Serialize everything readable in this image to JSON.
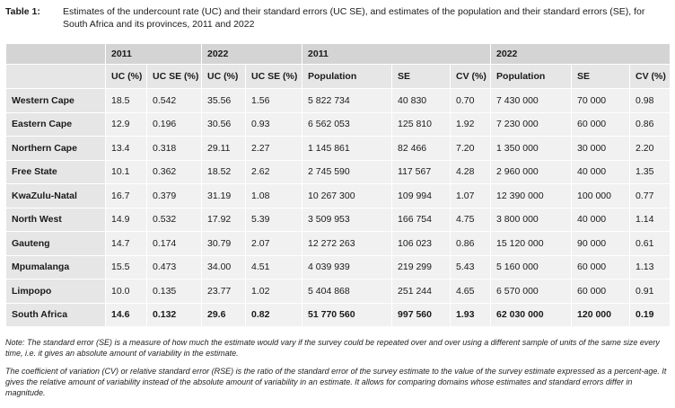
{
  "caption": {
    "label": "Table 1:",
    "text": "Estimates of the undercount rate (UC) and their standard errors (UC SE), and estimates of the population and their standard errors (SE), for South Africa and its provinces, 2011 and 2022"
  },
  "year_headers": [
    "2011",
    "2022",
    "2011",
    "2022"
  ],
  "column_headers": [
    "UC (%)",
    "UC SE (%)",
    "UC (%)",
    "UC SE (%)",
    "Population",
    "SE",
    "CV (%)",
    "Population",
    "SE",
    "CV (%)"
  ],
  "rows": [
    {
      "province": "Western Cape",
      "cells": [
        "18.5",
        "0.542",
        "35.56",
        "1.56",
        "5 822 734",
        "40 830",
        "0.70",
        "7 430 000",
        "70 000",
        "0.98"
      ]
    },
    {
      "province": "Eastern Cape",
      "cells": [
        "12.9",
        "0.196",
        "30.56",
        "0.93",
        "6 562 053",
        "125 810",
        "1.92",
        "7 230 000",
        "60 000",
        "0.86"
      ]
    },
    {
      "province": "Northern Cape",
      "cells": [
        "13.4",
        "0.318",
        "29.11",
        "2.27",
        "1 145 861",
        "82 466",
        "7.20",
        "1 350 000",
        "30 000",
        "2.20"
      ]
    },
    {
      "province": "Free State",
      "cells": [
        "10.1",
        "0.362",
        "18.52",
        "2.62",
        "2 745 590",
        "117 567",
        "4.28",
        "2 960 000",
        "40 000",
        "1.35"
      ]
    },
    {
      "province": "KwaZulu-Natal",
      "cells": [
        "16.7",
        "0.379",
        "31.19",
        "1.08",
        "10 267 300",
        "109 994",
        "1.07",
        "12 390 000",
        "100 000",
        "0.77"
      ]
    },
    {
      "province": "North West",
      "cells": [
        "14.9",
        "0.532",
        "17.92",
        "5.39",
        "3 509 953",
        "166 754",
        "4.75",
        "3 800 000",
        "40 000",
        "1.14"
      ]
    },
    {
      "province": "Gauteng",
      "cells": [
        "14.7",
        "0.174",
        "30.79",
        "2.07",
        "12 272 263",
        "106 023",
        "0.86",
        "15 120 000",
        "90 000",
        "0.61"
      ]
    },
    {
      "province": "Mpumalanga",
      "cells": [
        "15.5",
        "0.473",
        "34.00",
        "4.51",
        "4 039 939",
        "219 299",
        "5.43",
        "5 160 000",
        "60 000",
        "1.13"
      ]
    },
    {
      "province": "Limpopo",
      "cells": [
        "10.0",
        "0.135",
        "23.77",
        "1.02",
        "5 404 868",
        "251 244",
        "4.65",
        "6 570 000",
        "60 000",
        "0.91"
      ]
    },
    {
      "province": "South Africa",
      "cells": [
        "14.6",
        "0.132",
        "29.6",
        "0.82",
        "51 770 560",
        "997 560",
        "1.93",
        "62 030 000",
        "120 000",
        "0.19"
      ]
    }
  ],
  "notes": [
    "Note: The standard error (SE) is a measure of how much the estimate would vary if the survey could be repeated over and over using a different sample of units of the same size every time, i.e. it gives an absolute amount of variability in the estimate.",
    "The coefficient of variation (CV) or relative standard error (RSE) is the ratio of the standard error of the survey estimate to the value of the survey estimate expressed as a percent-age. It gives the relative amount of variability instead of the absolute amount of variability in an estimate. It allows for comparing domains whose estimates and standard errors differ in magnitude."
  ]
}
